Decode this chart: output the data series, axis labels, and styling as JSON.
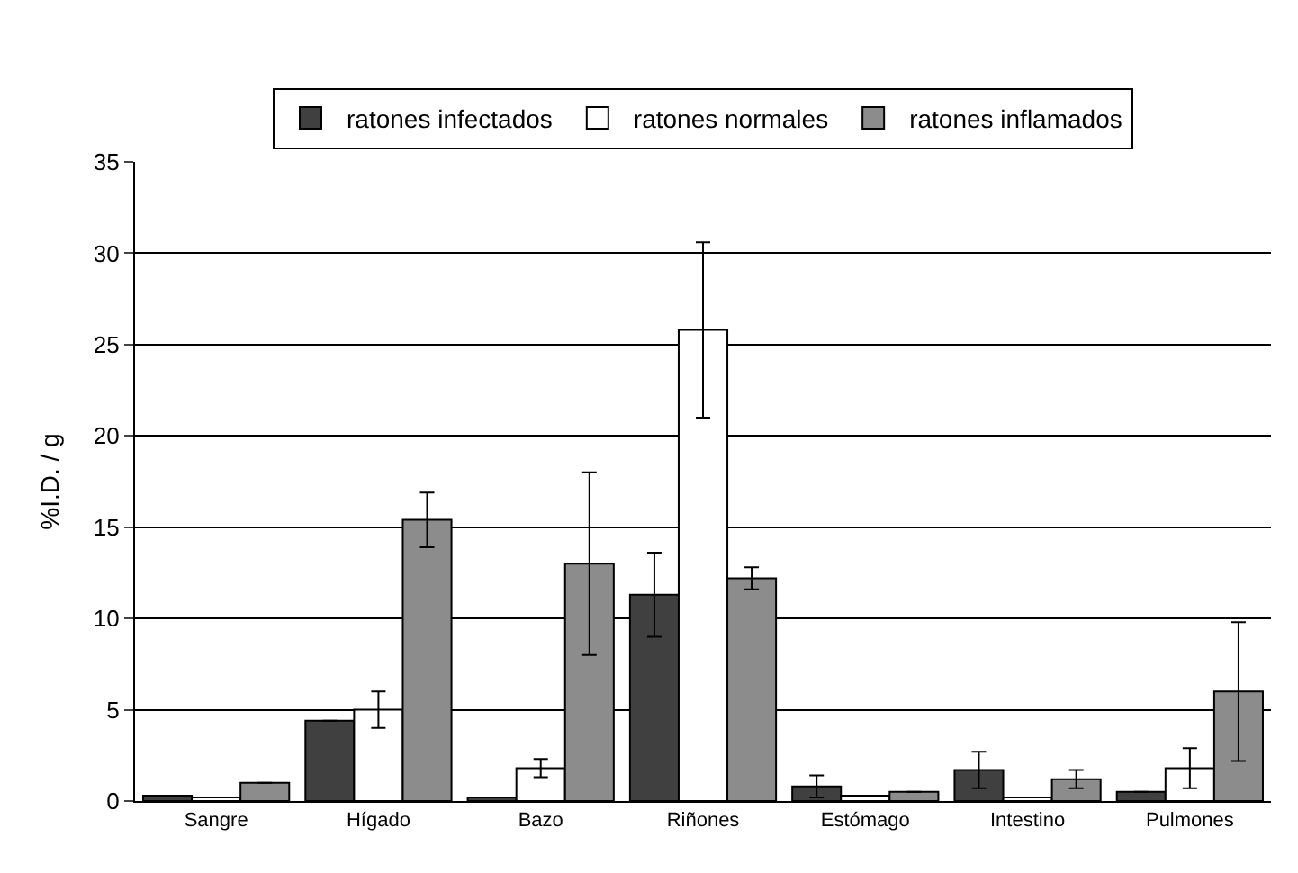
{
  "chart_data": {
    "type": "bar",
    "ylabel": "%I.D. / g",
    "categories": [
      "Sangre",
      "Hígado",
      "Bazo",
      "Riñones",
      "Estómago",
      "Intestino",
      "Pulmones"
    ],
    "series": [
      {
        "name": "ratones infectados",
        "color": "#404040",
        "values": [
          0.3,
          4.4,
          0.2,
          11.3,
          0.8,
          1.7,
          0.5
        ],
        "errors": [
          null,
          null,
          null,
          2.3,
          0.6,
          1.0,
          null
        ]
      },
      {
        "name": "ratones normales",
        "color": "#ffffff",
        "values": [
          0.2,
          5.0,
          1.8,
          25.8,
          0.3,
          0.2,
          1.8
        ],
        "errors": [
          null,
          1.0,
          0.5,
          4.8,
          null,
          null,
          1.1
        ]
      },
      {
        "name": "ratones inflamados",
        "color": "#8c8c8c",
        "values": [
          1.0,
          15.4,
          13.0,
          12.2,
          0.5,
          1.2,
          6.0
        ],
        "errors": [
          null,
          1.5,
          5.0,
          0.6,
          null,
          0.5,
          3.8
        ]
      }
    ],
    "ylim": [
      0,
      35
    ],
    "yticks": [
      0,
      5,
      10,
      15,
      20,
      25,
      30,
      35
    ],
    "grid": "y",
    "legend": "top"
  }
}
